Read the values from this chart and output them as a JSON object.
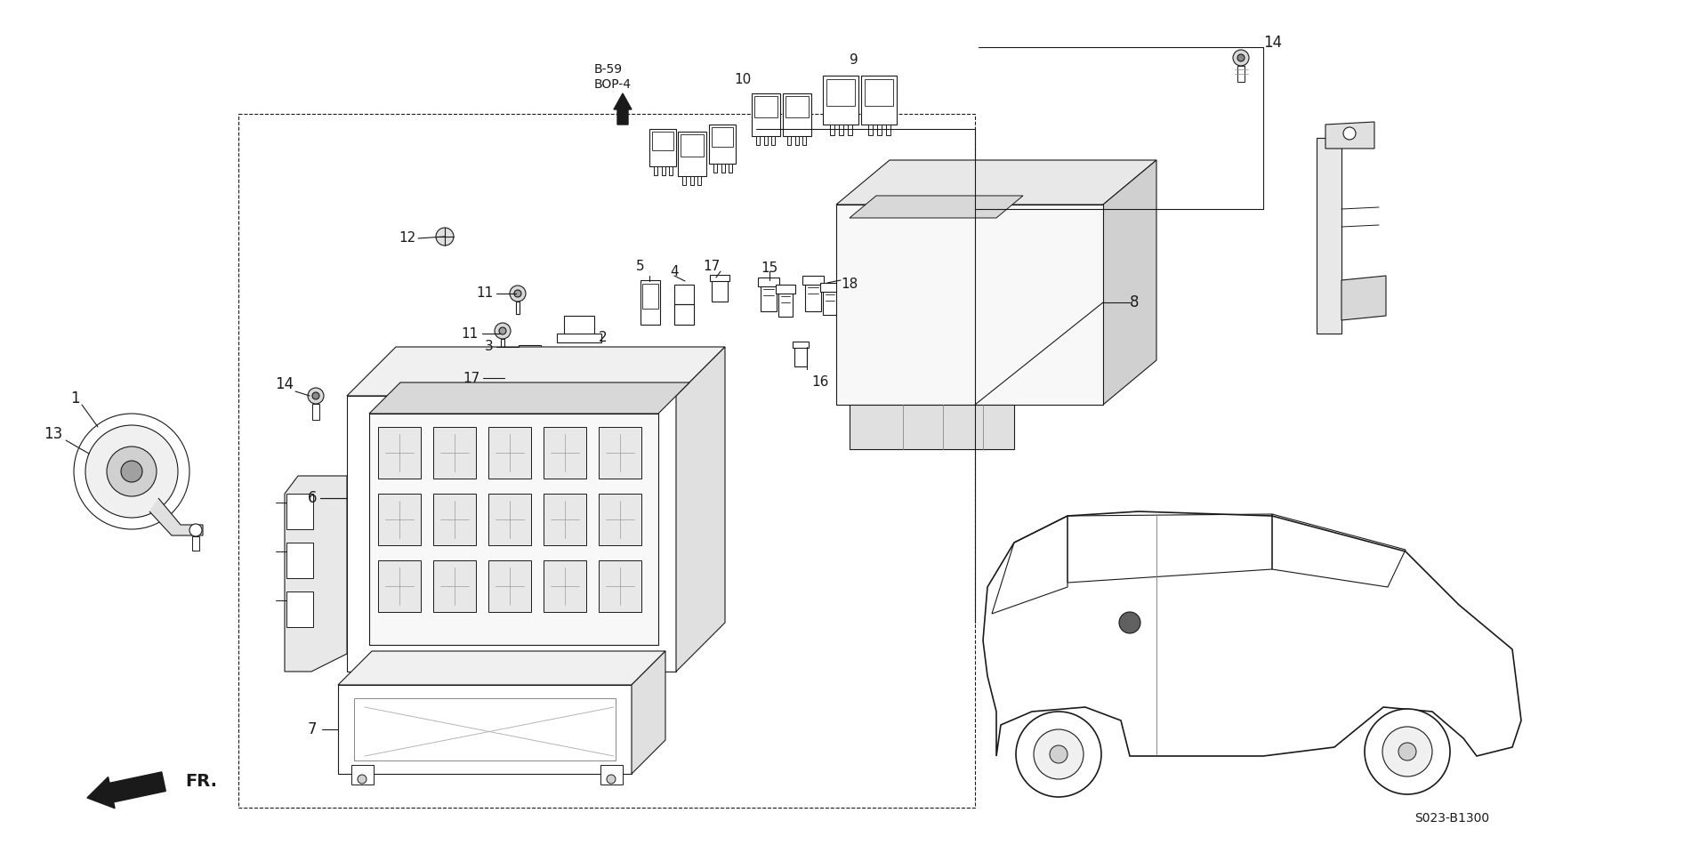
{
  "bg_color": "#ffffff",
  "line_color": "#1a1a1a",
  "diagram_code": "S023-B1300",
  "figsize": [
    19.2,
    9.59
  ],
  "dpi": 100,
  "labels": {
    "bop_line1": "B-59",
    "bop_line2": "BOP-4",
    "fr": "FR.",
    "1": "1",
    "2": "2",
    "3": "3",
    "4": "4",
    "5": "5",
    "6": "6",
    "7": "7",
    "8": "8",
    "9": "9",
    "10": "10",
    "11a": "11",
    "11b": "11",
    "12": "12",
    "13": "13",
    "14a": "14",
    "14b": "14",
    "15": "15",
    "16": "16",
    "17a": "17",
    "17b": "17",
    "18": "18"
  }
}
